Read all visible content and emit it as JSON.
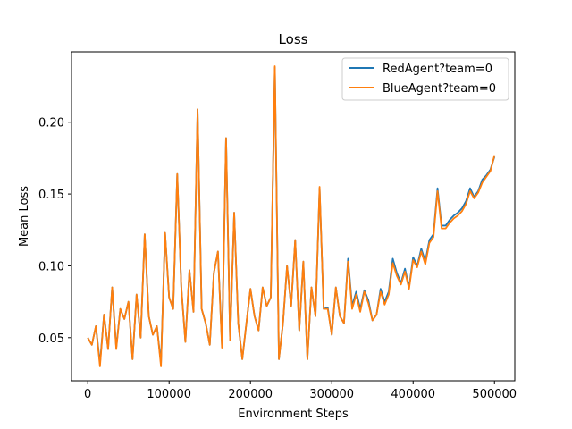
{
  "chart_data": {
    "type": "line",
    "title": "Loss",
    "xlabel": "Environment Steps",
    "ylabel": "Mean Loss",
    "xlim": [
      -20000,
      525000
    ],
    "ylim": [
      0.02,
      0.249
    ],
    "xticks": [
      0,
      100000,
      200000,
      300000,
      400000,
      500000
    ],
    "xtick_labels": [
      "0",
      "100000",
      "200000",
      "300000",
      "400000",
      "500000"
    ],
    "yticks": [
      0.05,
      0.1,
      0.15,
      0.2
    ],
    "ytick_labels": [
      "0.05",
      "0.10",
      "0.15",
      "0.20"
    ],
    "grid": false,
    "legend_position": "top-right",
    "series": [
      {
        "name": "RedAgent?team=0",
        "color": "#1f77b4",
        "x": [
          0,
          5000,
          10000,
          15000,
          20000,
          25000,
          30000,
          35000,
          40000,
          45000,
          50000,
          55000,
          60000,
          65000,
          70000,
          75000,
          80000,
          85000,
          90000,
          95000,
          100000,
          105000,
          110000,
          115000,
          120000,
          125000,
          130000,
          135000,
          140000,
          145000,
          150000,
          155000,
          160000,
          165000,
          170000,
          175000,
          180000,
          185000,
          190000,
          195000,
          200000,
          205000,
          210000,
          215000,
          220000,
          225000,
          230000,
          235000,
          240000,
          245000,
          250000,
          255000,
          260000,
          265000,
          270000,
          275000,
          280000,
          285000,
          290000,
          295000,
          300000,
          305000,
          310000,
          315000,
          320000,
          325000,
          330000,
          335000,
          340000,
          345000,
          350000,
          355000,
          360000,
          365000,
          370000,
          375000,
          380000,
          385000,
          390000,
          395000,
          400000,
          405000,
          410000,
          415000,
          420000,
          425000,
          430000,
          435000,
          440000,
          445000,
          450000,
          455000,
          460000,
          465000,
          470000,
          475000,
          480000,
          485000,
          490000,
          495000,
          500000
        ],
        "values": [
          0.05,
          0.045,
          0.058,
          0.032,
          0.066,
          0.042,
          0.085,
          0.043,
          0.07,
          0.063,
          0.075,
          0.035,
          0.08,
          0.05,
          0.122,
          0.065,
          0.052,
          0.058,
          0.032,
          0.123,
          0.078,
          0.07,
          0.164,
          0.085,
          0.047,
          0.097,
          0.068,
          0.209,
          0.07,
          0.06,
          0.045,
          0.095,
          0.11,
          0.045,
          0.189,
          0.048,
          0.137,
          0.06,
          0.035,
          0.06,
          0.084,
          0.065,
          0.055,
          0.085,
          0.072,
          0.078,
          0.238,
          0.035,
          0.06,
          0.1,
          0.072,
          0.118,
          0.055,
          0.103,
          0.035,
          0.085,
          0.065,
          0.154,
          0.07,
          0.071,
          0.052,
          0.085,
          0.065,
          0.06,
          0.105,
          0.072,
          0.082,
          0.07,
          0.083,
          0.076,
          0.062,
          0.066,
          0.084,
          0.075,
          0.082,
          0.105,
          0.095,
          0.088,
          0.098,
          0.085,
          0.106,
          0.1,
          0.112,
          0.103,
          0.118,
          0.122,
          0.154,
          0.128,
          0.128,
          0.132,
          0.135,
          0.137,
          0.14,
          0.145,
          0.154,
          0.148,
          0.152,
          0.16,
          0.163,
          0.167,
          0.176
        ]
      },
      {
        "name": "BlueAgent?team=0",
        "color": "#ff7f0e",
        "x": [
          0,
          5000,
          10000,
          15000,
          20000,
          25000,
          30000,
          35000,
          40000,
          45000,
          50000,
          55000,
          60000,
          65000,
          70000,
          75000,
          80000,
          85000,
          90000,
          95000,
          100000,
          105000,
          110000,
          115000,
          120000,
          125000,
          130000,
          135000,
          140000,
          145000,
          150000,
          155000,
          160000,
          165000,
          170000,
          175000,
          180000,
          185000,
          190000,
          195000,
          200000,
          205000,
          210000,
          215000,
          220000,
          225000,
          230000,
          235000,
          240000,
          245000,
          250000,
          255000,
          260000,
          265000,
          270000,
          275000,
          280000,
          285000,
          290000,
          295000,
          300000,
          305000,
          310000,
          315000,
          320000,
          325000,
          330000,
          335000,
          340000,
          345000,
          350000,
          355000,
          360000,
          365000,
          370000,
          375000,
          380000,
          385000,
          390000,
          395000,
          400000,
          405000,
          410000,
          415000,
          420000,
          425000,
          430000,
          435000,
          440000,
          445000,
          450000,
          455000,
          460000,
          465000,
          470000,
          475000,
          480000,
          485000,
          490000,
          495000,
          500000
        ],
        "values": [
          0.05,
          0.045,
          0.058,
          0.03,
          0.066,
          0.042,
          0.085,
          0.042,
          0.07,
          0.063,
          0.075,
          0.035,
          0.08,
          0.05,
          0.122,
          0.065,
          0.052,
          0.058,
          0.03,
          0.123,
          0.078,
          0.07,
          0.164,
          0.085,
          0.047,
          0.097,
          0.068,
          0.209,
          0.07,
          0.06,
          0.045,
          0.095,
          0.11,
          0.043,
          0.189,
          0.048,
          0.137,
          0.06,
          0.035,
          0.06,
          0.084,
          0.065,
          0.055,
          0.085,
          0.072,
          0.078,
          0.239,
          0.035,
          0.06,
          0.1,
          0.072,
          0.118,
          0.055,
          0.103,
          0.035,
          0.085,
          0.065,
          0.155,
          0.07,
          0.07,
          0.052,
          0.085,
          0.065,
          0.06,
          0.103,
          0.07,
          0.08,
          0.068,
          0.082,
          0.074,
          0.062,
          0.066,
          0.082,
          0.073,
          0.08,
          0.102,
          0.093,
          0.087,
          0.096,
          0.084,
          0.104,
          0.099,
          0.11,
          0.101,
          0.116,
          0.12,
          0.152,
          0.126,
          0.126,
          0.13,
          0.133,
          0.135,
          0.138,
          0.143,
          0.152,
          0.147,
          0.151,
          0.158,
          0.162,
          0.166,
          0.177
        ]
      }
    ]
  }
}
